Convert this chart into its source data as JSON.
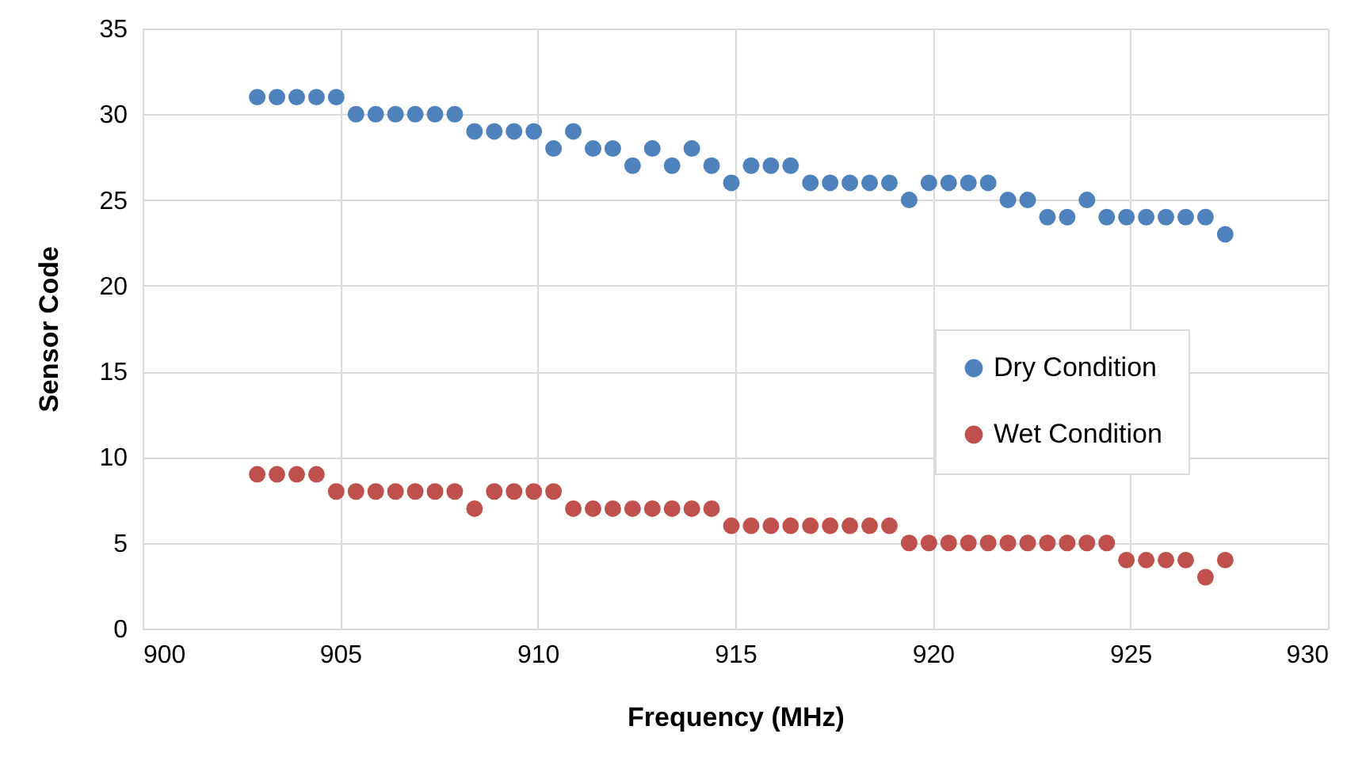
{
  "chart_data": {
    "type": "scatter",
    "xlabel": "Frequency (MHz)",
    "ylabel": "Sensor Code",
    "x": [
      902.9,
      903.4,
      903.9,
      904.4,
      904.9,
      905.4,
      905.9,
      906.4,
      906.9,
      907.4,
      907.9,
      908.4,
      908.9,
      909.4,
      909.9,
      910.4,
      910.9,
      911.4,
      911.9,
      912.4,
      912.9,
      913.4,
      913.9,
      914.4,
      914.9,
      915.4,
      915.9,
      916.4,
      916.9,
      917.4,
      917.9,
      918.4,
      918.9,
      919.4,
      919.9,
      920.4,
      920.9,
      921.4,
      921.9,
      922.4,
      922.9,
      923.4,
      923.9,
      924.4,
      924.9,
      925.4,
      925.9,
      926.4,
      926.9,
      927.4
    ],
    "series": [
      {
        "name": "Dry Condition",
        "color": "#4f81bd",
        "values": [
          31,
          31,
          31,
          31,
          31,
          30,
          30,
          30,
          30,
          30,
          30,
          29,
          29,
          29,
          29,
          28,
          29,
          28,
          28,
          27,
          28,
          27,
          28,
          27,
          26,
          27,
          27,
          27,
          26,
          26,
          26,
          26,
          26,
          25,
          26,
          26,
          26,
          26,
          25,
          25,
          24,
          24,
          25,
          24,
          24,
          24,
          24,
          24,
          24,
          23
        ]
      },
      {
        "name": "Wet Condition",
        "color": "#c0504d",
        "values": [
          9,
          9,
          9,
          9,
          8,
          8,
          8,
          8,
          8,
          8,
          8,
          7,
          8,
          8,
          8,
          8,
          7,
          7,
          7,
          7,
          7,
          7,
          7,
          7,
          6,
          6,
          6,
          6,
          6,
          6,
          6,
          6,
          6,
          5,
          5,
          5,
          5,
          5,
          5,
          5,
          5,
          5,
          5,
          5,
          4,
          4,
          4,
          4,
          3,
          4
        ]
      }
    ],
    "xlim": [
      900,
      930
    ],
    "xticks": [
      900,
      905,
      910,
      915,
      920,
      925,
      930
    ],
    "ylim": [
      0,
      35
    ],
    "yticks": [
      0,
      5,
      10,
      15,
      20,
      25,
      30,
      35
    ],
    "grid": true,
    "legend": "right",
    "marker": "circle"
  }
}
